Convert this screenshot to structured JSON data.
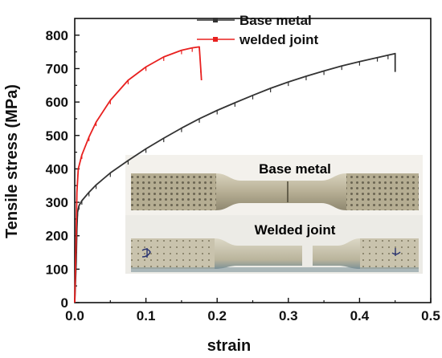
{
  "chart_data": {
    "type": "line",
    "xlabel": "strain",
    "ylabel": "Tensile stress (MPa)",
    "xlim": [
      0,
      0.5
    ],
    "ylim": [
      0,
      850
    ],
    "xticks": [
      "0.0",
      "0.1",
      "0.2",
      "0.3",
      "0.4",
      "0.5"
    ],
    "yticks": [
      "0",
      "100",
      "200",
      "300",
      "400",
      "500",
      "600",
      "700",
      "800"
    ],
    "legend": "top-center",
    "series": [
      {
        "name": "Base metal",
        "color": "#333333",
        "x": [
          0,
          0.002,
          0.003,
          0.004,
          0.006,
          0.01,
          0.02,
          0.03,
          0.05,
          0.075,
          0.1,
          0.125,
          0.15,
          0.175,
          0.2,
          0.225,
          0.25,
          0.275,
          0.3,
          0.325,
          0.35,
          0.375,
          0.4,
          0.425,
          0.44,
          0.45,
          0.45
        ],
        "y": [
          0,
          120,
          220,
          270,
          290,
          305,
          330,
          352,
          388,
          425,
          460,
          492,
          522,
          550,
          575,
          598,
          620,
          641,
          660,
          677,
          693,
          708,
          721,
          733,
          740,
          745,
          690
        ]
      },
      {
        "name": "welded joint",
        "color": "#e8201f",
        "x": [
          0,
          0.002,
          0.003,
          0.005,
          0.01,
          0.02,
          0.03,
          0.05,
          0.075,
          0.1,
          0.125,
          0.15,
          0.165,
          0.175,
          0.177,
          0.178
        ],
        "y": [
          0,
          200,
          330,
          400,
          442,
          495,
          540,
          605,
          665,
          705,
          735,
          755,
          762,
          765,
          700,
          665
        ]
      }
    ]
  },
  "inset": {
    "top_label": "Base metal",
    "bottom_label": "Welded joint"
  }
}
